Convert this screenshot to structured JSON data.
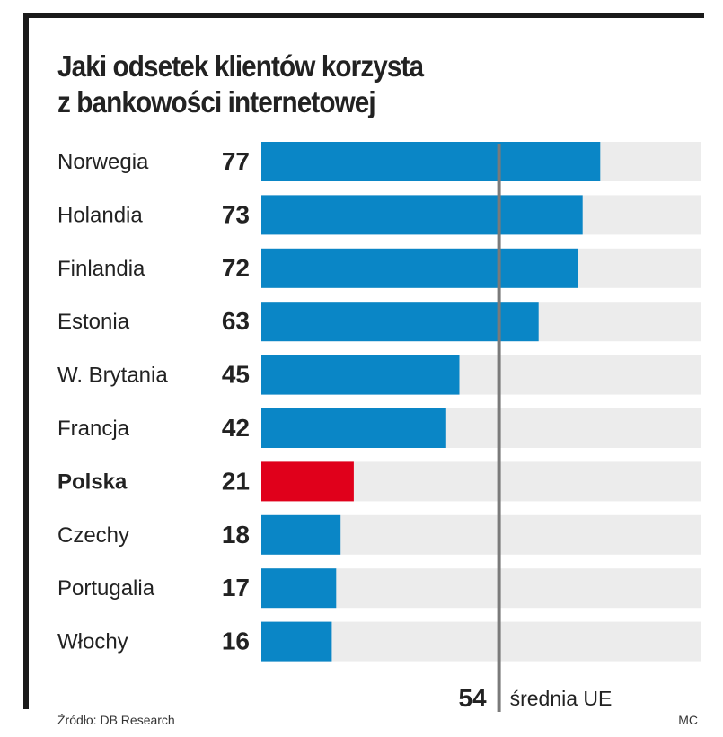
{
  "title_line1": "Jaki odsetek klientów korzysta",
  "title_line2": "z bankowości internetowej",
  "source": "Źródło: DB Research",
  "credit": "MC",
  "colors": {
    "bar": "#0a86c6",
    "highlight": "#e0001b",
    "track": "#ececec",
    "avg_line": "#7a7a7a",
    "text": "#222222"
  },
  "chart_data": {
    "type": "bar",
    "orientation": "horizontal",
    "title": "Jaki odsetek klientów korzysta z bankowości internetowej",
    "categories": [
      "Norwegia",
      "Holandia",
      "Finlandia",
      "Estonia",
      "W. Brytania",
      "Francja",
      "Polska",
      "Czechy",
      "Portugalia",
      "Włochy"
    ],
    "values": [
      77,
      73,
      72,
      63,
      45,
      42,
      21,
      18,
      17,
      16
    ],
    "highlight": "Polska",
    "xlim": [
      0,
      100
    ],
    "reference_line": {
      "value": 54,
      "label": "średnia UE"
    }
  }
}
